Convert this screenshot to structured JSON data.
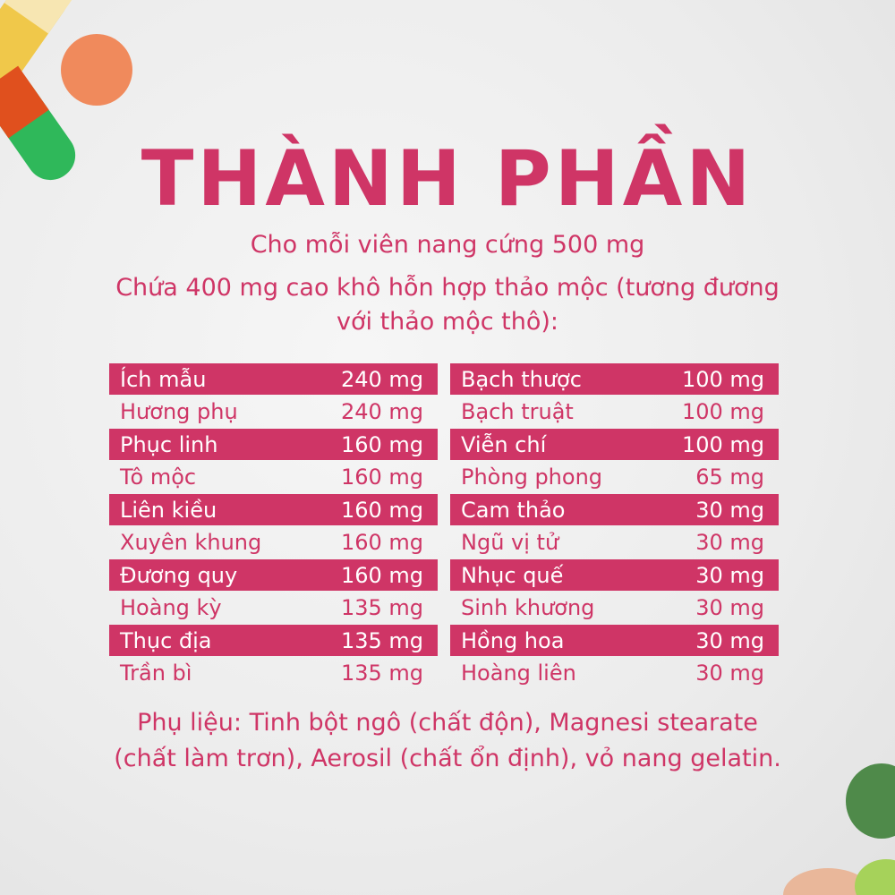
{
  "title": "THÀNH PHẦN",
  "subtitle_lines": [
    "Cho mỗi viên nang cứng 500 mg",
    "Chứa 400 mg cao khô hỗn hợp thảo mộc (tương đương",
    "với thảo mộc thô):"
  ],
  "left_column": [
    {
      "name": "Ích mẫu",
      "amount": "240 mg"
    },
    {
      "name": "Hương phụ",
      "amount": "240 mg"
    },
    {
      "name": "Phục linh",
      "amount": "160 mg"
    },
    {
      "name": "Tô mộc",
      "amount": "160 mg"
    },
    {
      "name": "Liên kiều",
      "amount": "160 mg"
    },
    {
      "name": "Xuyên khung",
      "amount": "160 mg"
    },
    {
      "name": "Đương quy",
      "amount": "160 mg"
    },
    {
      "name": "Hoàng kỳ",
      "amount": "135 mg"
    },
    {
      "name": "Thục địa",
      "amount": "135 mg"
    },
    {
      "name": "Trần bì",
      "amount": "135 mg"
    }
  ],
  "right_column": [
    {
      "name": "Bạch thược",
      "amount": "100 mg"
    },
    {
      "name": "Bạch truật",
      "amount": "100 mg"
    },
    {
      "name": "Viễn chí",
      "amount": "100 mg"
    },
    {
      "name": "Phòng phong",
      "amount": "65 mg"
    },
    {
      "name": "Cam thảo",
      "amount": "30 mg"
    },
    {
      "name": "Ngũ vị tử",
      "amount": "30 mg"
    },
    {
      "name": "Nhục quế",
      "amount": "30 mg"
    },
    {
      "name": "Sinh khương",
      "amount": "30 mg"
    },
    {
      "name": "Hồng hoa",
      "amount": "30 mg"
    },
    {
      "name": "Hoàng liên",
      "amount": "30 mg"
    }
  ],
  "footer_lines": [
    "Phụ liệu: Tinh bột ngô (chất độn), Magnesi stearate",
    "(chất làm trơn), Aerosil (chất ổn định), vỏ nang gelatin."
  ],
  "colors": {
    "accent": "#cf3566",
    "background": "#ececec"
  },
  "decorations": [
    "capsule-yellow",
    "pill-orange",
    "capsule-red-green",
    "pill-green",
    "pill-peach"
  ]
}
